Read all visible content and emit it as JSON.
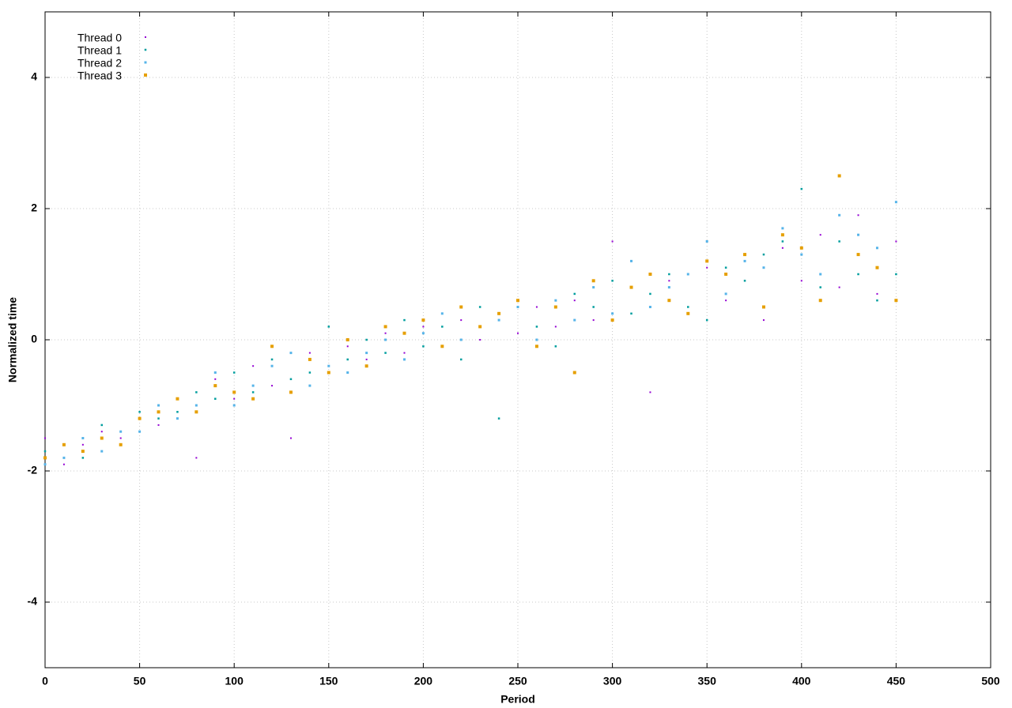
{
  "chart_data": {
    "type": "scatter",
    "xlabel": "Period",
    "ylabel": "Normalized time",
    "x": [
      0,
      10,
      20,
      30,
      40,
      50,
      60,
      70,
      80,
      90,
      100,
      110,
      120,
      130,
      140,
      150,
      160,
      170,
      180,
      190,
      200,
      210,
      220,
      230,
      240,
      250,
      260,
      270,
      280,
      290,
      300,
      310,
      320,
      330,
      340,
      350,
      360,
      370,
      380,
      390,
      400,
      410,
      420,
      430,
      440,
      450
    ],
    "series": [
      {
        "name": "Thread 0",
        "color": "#9400d3",
        "values": [
          -1.5,
          -1.9,
          -1.6,
          -1.4,
          -1.5,
          -1.2,
          -1.3,
          -0.9,
          -1.8,
          -0.6,
          -0.9,
          -0.4,
          -0.7,
          -1.5,
          -0.2,
          -0.5,
          -0.1,
          -0.3,
          0.1,
          -0.2,
          0.2,
          -0.1,
          0.3,
          0.0,
          0.4,
          0.1,
          0.5,
          0.2,
          0.6,
          0.3,
          1.5,
          0.8,
          -0.8,
          0.9,
          0.4,
          1.1,
          0.6,
          1.2,
          0.3,
          1.4,
          0.9,
          1.6,
          0.8,
          1.9,
          0.7,
          1.5
        ]
      },
      {
        "name": "Thread 1",
        "color": "#009e9e",
        "values": [
          -1.7,
          -1.6,
          -1.8,
          -1.3,
          -1.6,
          -1.1,
          -1.2,
          -1.1,
          -0.8,
          -0.9,
          -0.5,
          -0.8,
          -0.3,
          -0.6,
          -0.5,
          0.2,
          -0.3,
          0.0,
          -0.2,
          0.3,
          -0.1,
          0.2,
          -0.3,
          0.5,
          -1.2,
          0.6,
          0.2,
          -0.1,
          0.7,
          0.5,
          0.9,
          0.4,
          0.7,
          1.0,
          0.5,
          0.3,
          1.1,
          0.9,
          1.3,
          1.5,
          2.3,
          0.8,
          1.5,
          1.0,
          0.6,
          1.0
        ]
      },
      {
        "name": "Thread 2",
        "color": "#56b4e9",
        "values": [
          -1.9,
          -1.8,
          -1.5,
          -1.7,
          -1.4,
          -1.4,
          -1.0,
          -1.2,
          -1.0,
          -0.5,
          -1.0,
          -0.7,
          -0.4,
          -0.2,
          -0.7,
          -0.4,
          -0.5,
          -0.2,
          0.0,
          -0.3,
          0.1,
          0.4,
          0.0,
          0.2,
          0.3,
          0.5,
          0.0,
          0.6,
          0.3,
          0.8,
          0.4,
          1.2,
          0.5,
          0.8,
          1.0,
          1.5,
          0.7,
          1.2,
          1.1,
          1.7,
          1.3,
          1.0,
          1.9,
          1.6,
          1.4,
          2.1
        ]
      },
      {
        "name": "Thread 3",
        "color": "#e69f00",
        "values": [
          -1.8,
          -1.6,
          -1.7,
          -1.5,
          -1.6,
          -1.2,
          -1.1,
          -0.9,
          -1.1,
          -0.7,
          -0.8,
          -0.9,
          -0.1,
          -0.8,
          -0.3,
          -0.5,
          0.0,
          -0.4,
          0.2,
          0.1,
          0.3,
          -0.1,
          0.5,
          0.2,
          0.4,
          0.6,
          -0.1,
          0.5,
          -0.5,
          0.9,
          0.3,
          0.8,
          1.0,
          0.6,
          0.4,
          1.2,
          1.0,
          1.3,
          0.5,
          1.6,
          1.4,
          0.6,
          2.5,
          1.3,
          1.1,
          0.6
        ]
      }
    ],
    "xlim": [
      0,
      500
    ],
    "ylim": [
      -5,
      5
    ],
    "xticks": [
      0,
      50,
      100,
      150,
      200,
      250,
      300,
      350,
      400,
      450,
      500
    ],
    "yticks": [
      -4,
      -2,
      0,
      2,
      4
    ],
    "grid": true,
    "legend": "upper-left"
  }
}
